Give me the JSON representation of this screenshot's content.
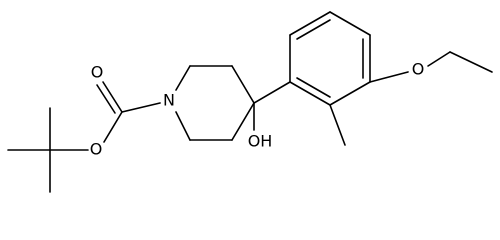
{
  "atoms": [
    {
      "label": "O"
    },
    {
      "label": "O"
    },
    {
      "label": "N"
    },
    {
      "label": "OH"
    },
    {
      "label": "O"
    }
  ]
}
